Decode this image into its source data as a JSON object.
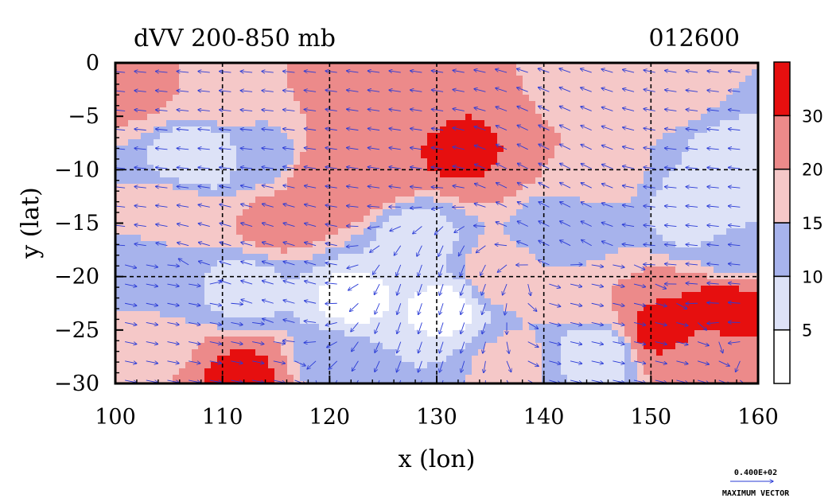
{
  "chart_data": {
    "type": "heatmap",
    "title_left": "dVV 200-850 mb",
    "title_right": "012600",
    "xlabel": "x (lon)",
    "ylabel": "y (lat)",
    "xlim": [
      100,
      160
    ],
    "ylim": [
      -30,
      0
    ],
    "x_ticks": [
      "100",
      "110",
      "120",
      "130",
      "140",
      "150",
      "160"
    ],
    "y_ticks": [
      "0",
      "-5",
      "-10",
      "-15",
      "-20",
      "-25",
      "-30"
    ],
    "grid": "dashed",
    "colorbar": {
      "levels": [
        0,
        5,
        10,
        15,
        20,
        30,
        35
      ],
      "labels": [
        "5",
        "10",
        "15",
        "20",
        "30"
      ],
      "colors": [
        "#ffffff",
        "#dde2f7",
        "#a7b3ec",
        "#f5c8c8",
        "#ec8a8a",
        "#e60f0f"
      ]
    },
    "field_centers": [
      {
        "x": 102,
        "y": -2,
        "v": 22
      },
      {
        "x": 110,
        "y": -3,
        "v": 18
      },
      {
        "x": 122,
        "y": -2,
        "v": 22
      },
      {
        "x": 127,
        "y": -4,
        "v": 24
      },
      {
        "x": 136,
        "y": -6,
        "v": 30
      },
      {
        "x": 132,
        "y": -8,
        "v": 32
      },
      {
        "x": 142,
        "y": -3,
        "v": 16
      },
      {
        "x": 152,
        "y": -3,
        "v": 18
      },
      {
        "x": 157,
        "y": -8,
        "v": 9
      },
      {
        "x": 108,
        "y": -9,
        "v": 5
      },
      {
        "x": 114,
        "y": -9,
        "v": 13
      },
      {
        "x": 124,
        "y": -10,
        "v": 28
      },
      {
        "x": 120,
        "y": -11,
        "v": 30
      },
      {
        "x": 145,
        "y": -10,
        "v": 17
      },
      {
        "x": 155,
        "y": -14,
        "v": 5
      },
      {
        "x": 106,
        "y": -14,
        "v": 18
      },
      {
        "x": 115,
        "y": -15,
        "v": 22
      },
      {
        "x": 128,
        "y": -16,
        "v": 8
      },
      {
        "x": 142,
        "y": -16,
        "v": 11
      },
      {
        "x": 158,
        "y": -18,
        "v": 13
      },
      {
        "x": 104,
        "y": -20,
        "v": 12
      },
      {
        "x": 112,
        "y": -21,
        "v": 8
      },
      {
        "x": 122,
        "y": -22,
        "v": 4
      },
      {
        "x": 131,
        "y": -23,
        "v": 4
      },
      {
        "x": 136,
        "y": -20,
        "v": 18
      },
      {
        "x": 145,
        "y": -22,
        "v": 20
      },
      {
        "x": 151,
        "y": -25,
        "v": 33
      },
      {
        "x": 157,
        "y": -23,
        "v": 34
      },
      {
        "x": 145,
        "y": -27,
        "v": 6
      },
      {
        "x": 155,
        "y": -28,
        "v": 22
      },
      {
        "x": 103,
        "y": -26,
        "v": 16
      },
      {
        "x": 112,
        "y": -29.5,
        "v": 32
      },
      {
        "x": 120,
        "y": -28,
        "v": 13
      },
      {
        "x": 137,
        "y": -28,
        "v": 16
      }
    ],
    "vector_field": [
      {
        "x": 100,
        "y": -2,
        "u": -1,
        "v": 0.1
      },
      {
        "x": 110,
        "y": -5,
        "u": -1,
        "v": 0.1
      },
      {
        "x": 125,
        "y": -8,
        "u": -1,
        "v": 0.15
      },
      {
        "x": 140,
        "y": -12,
        "u": -0.8,
        "v": 0.4
      },
      {
        "x": 155,
        "y": -14,
        "u": -1,
        "v": 0.1
      },
      {
        "x": 115,
        "y": -18,
        "u": -1,
        "v": 0.3
      },
      {
        "x": 130,
        "y": -22,
        "u": -0.3,
        "v": -0.9
      },
      {
        "x": 145,
        "y": -25,
        "u": 0.9,
        "v": -0.2
      },
      {
        "x": 108,
        "y": -27,
        "u": 1,
        "v": -0.2
      }
    ],
    "vector_legend": {
      "value": "0.400E+02",
      "label": "MAXIMUM VECTOR"
    }
  }
}
